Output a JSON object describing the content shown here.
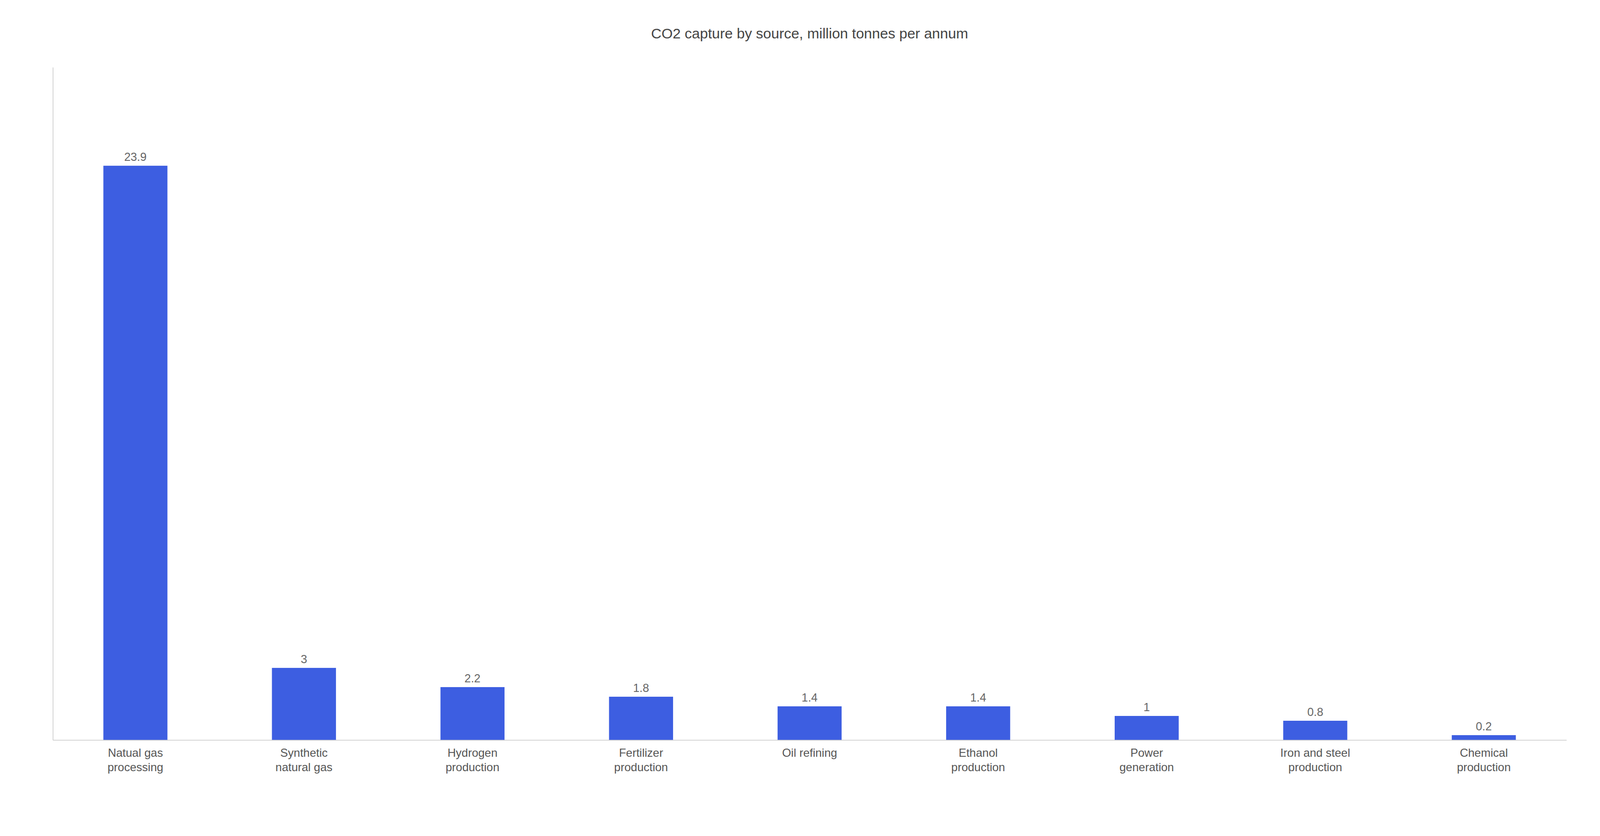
{
  "chart_data": {
    "type": "bar",
    "title": "CO2 capture by source, million tonnes per annum",
    "categories": [
      "Natual gas\nprocessing",
      "Synthetic\nnatural gas",
      "Hydrogen\nproduction",
      "Fertilizer\nproduction",
      "Oil refining",
      "Ethanol\nproduction",
      "Power\ngeneration",
      "Iron and steel\nproduction",
      "Chemical\nproduction"
    ],
    "values": [
      23.9,
      3.0,
      2.2,
      1.8,
      1.4,
      1.4,
      1.0,
      0.8,
      0.2
    ],
    "color": "#3D5EE1",
    "ylim": [
      0,
      28
    ],
    "grid": false,
    "tick_labels": "x",
    "data_labels": true
  }
}
